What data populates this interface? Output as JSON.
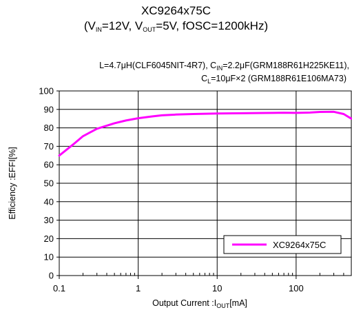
{
  "header": {
    "title_line1": "XC9264x75C",
    "title_line2": {
      "p1": "(V",
      "s1": "IN",
      "p2": "=12V, V",
      "s2": "OUT",
      "p3": "=5V, fOSC=1200kHz)"
    },
    "cond_line1": {
      "p1": "L=4.7μH(CLF6045NIT-4R7),  C",
      "s1": "IN",
      "p2": "=2.2μF(GRM188R61H225KE11),"
    },
    "cond_line2": {
      "p1": "C",
      "s1": "L",
      "p2": "=10μF×2 (GRM188R61E106MA73)"
    }
  },
  "chart_data": {
    "type": "line",
    "x_scale": "log",
    "xlim": [
      0.1,
      500
    ],
    "ylim": [
      0,
      100
    ],
    "grid": true,
    "xlabel": {
      "p1": "Output  Current :I",
      "s1": "OUT",
      "p2": "[mA]"
    },
    "ylabel": "Efficiency :EFFI[%]",
    "x_ticks": [
      {
        "value": 0.1,
        "label": "0.1"
      },
      {
        "value": 1,
        "label": "1"
      },
      {
        "value": 10,
        "label": "10"
      },
      {
        "value": 100,
        "label": "100"
      }
    ],
    "y_ticks": [
      {
        "value": 0,
        "label": "0"
      },
      {
        "value": 10,
        "label": "10"
      },
      {
        "value": 20,
        "label": "20"
      },
      {
        "value": 30,
        "label": "30"
      },
      {
        "value": 40,
        "label": "40"
      },
      {
        "value": 50,
        "label": "50"
      },
      {
        "value": 60,
        "label": "60"
      },
      {
        "value": 70,
        "label": "70"
      },
      {
        "value": 80,
        "label": "80"
      },
      {
        "value": 90,
        "label": "90"
      },
      {
        "value": 100,
        "label": "100"
      }
    ],
    "legend_position": "bottom-right",
    "series": [
      {
        "name": "XC9264x75C",
        "color": "#ff00ff",
        "points": [
          [
            0.1,
            65
          ],
          [
            0.15,
            71
          ],
          [
            0.2,
            75.5
          ],
          [
            0.3,
            79.5
          ],
          [
            0.5,
            82.5
          ],
          [
            0.7,
            84
          ],
          [
            1,
            85.2
          ],
          [
            1.5,
            86.2
          ],
          [
            2,
            86.8
          ],
          [
            3,
            87.2
          ],
          [
            5,
            87.5
          ],
          [
            10,
            87.8
          ],
          [
            20,
            87.9
          ],
          [
            50,
            88.1
          ],
          [
            70,
            88.2
          ],
          [
            100,
            88.1
          ],
          [
            150,
            88.3
          ],
          [
            200,
            88.6
          ],
          [
            300,
            88.7
          ],
          [
            400,
            87.5
          ],
          [
            500,
            85
          ]
        ]
      }
    ]
  }
}
